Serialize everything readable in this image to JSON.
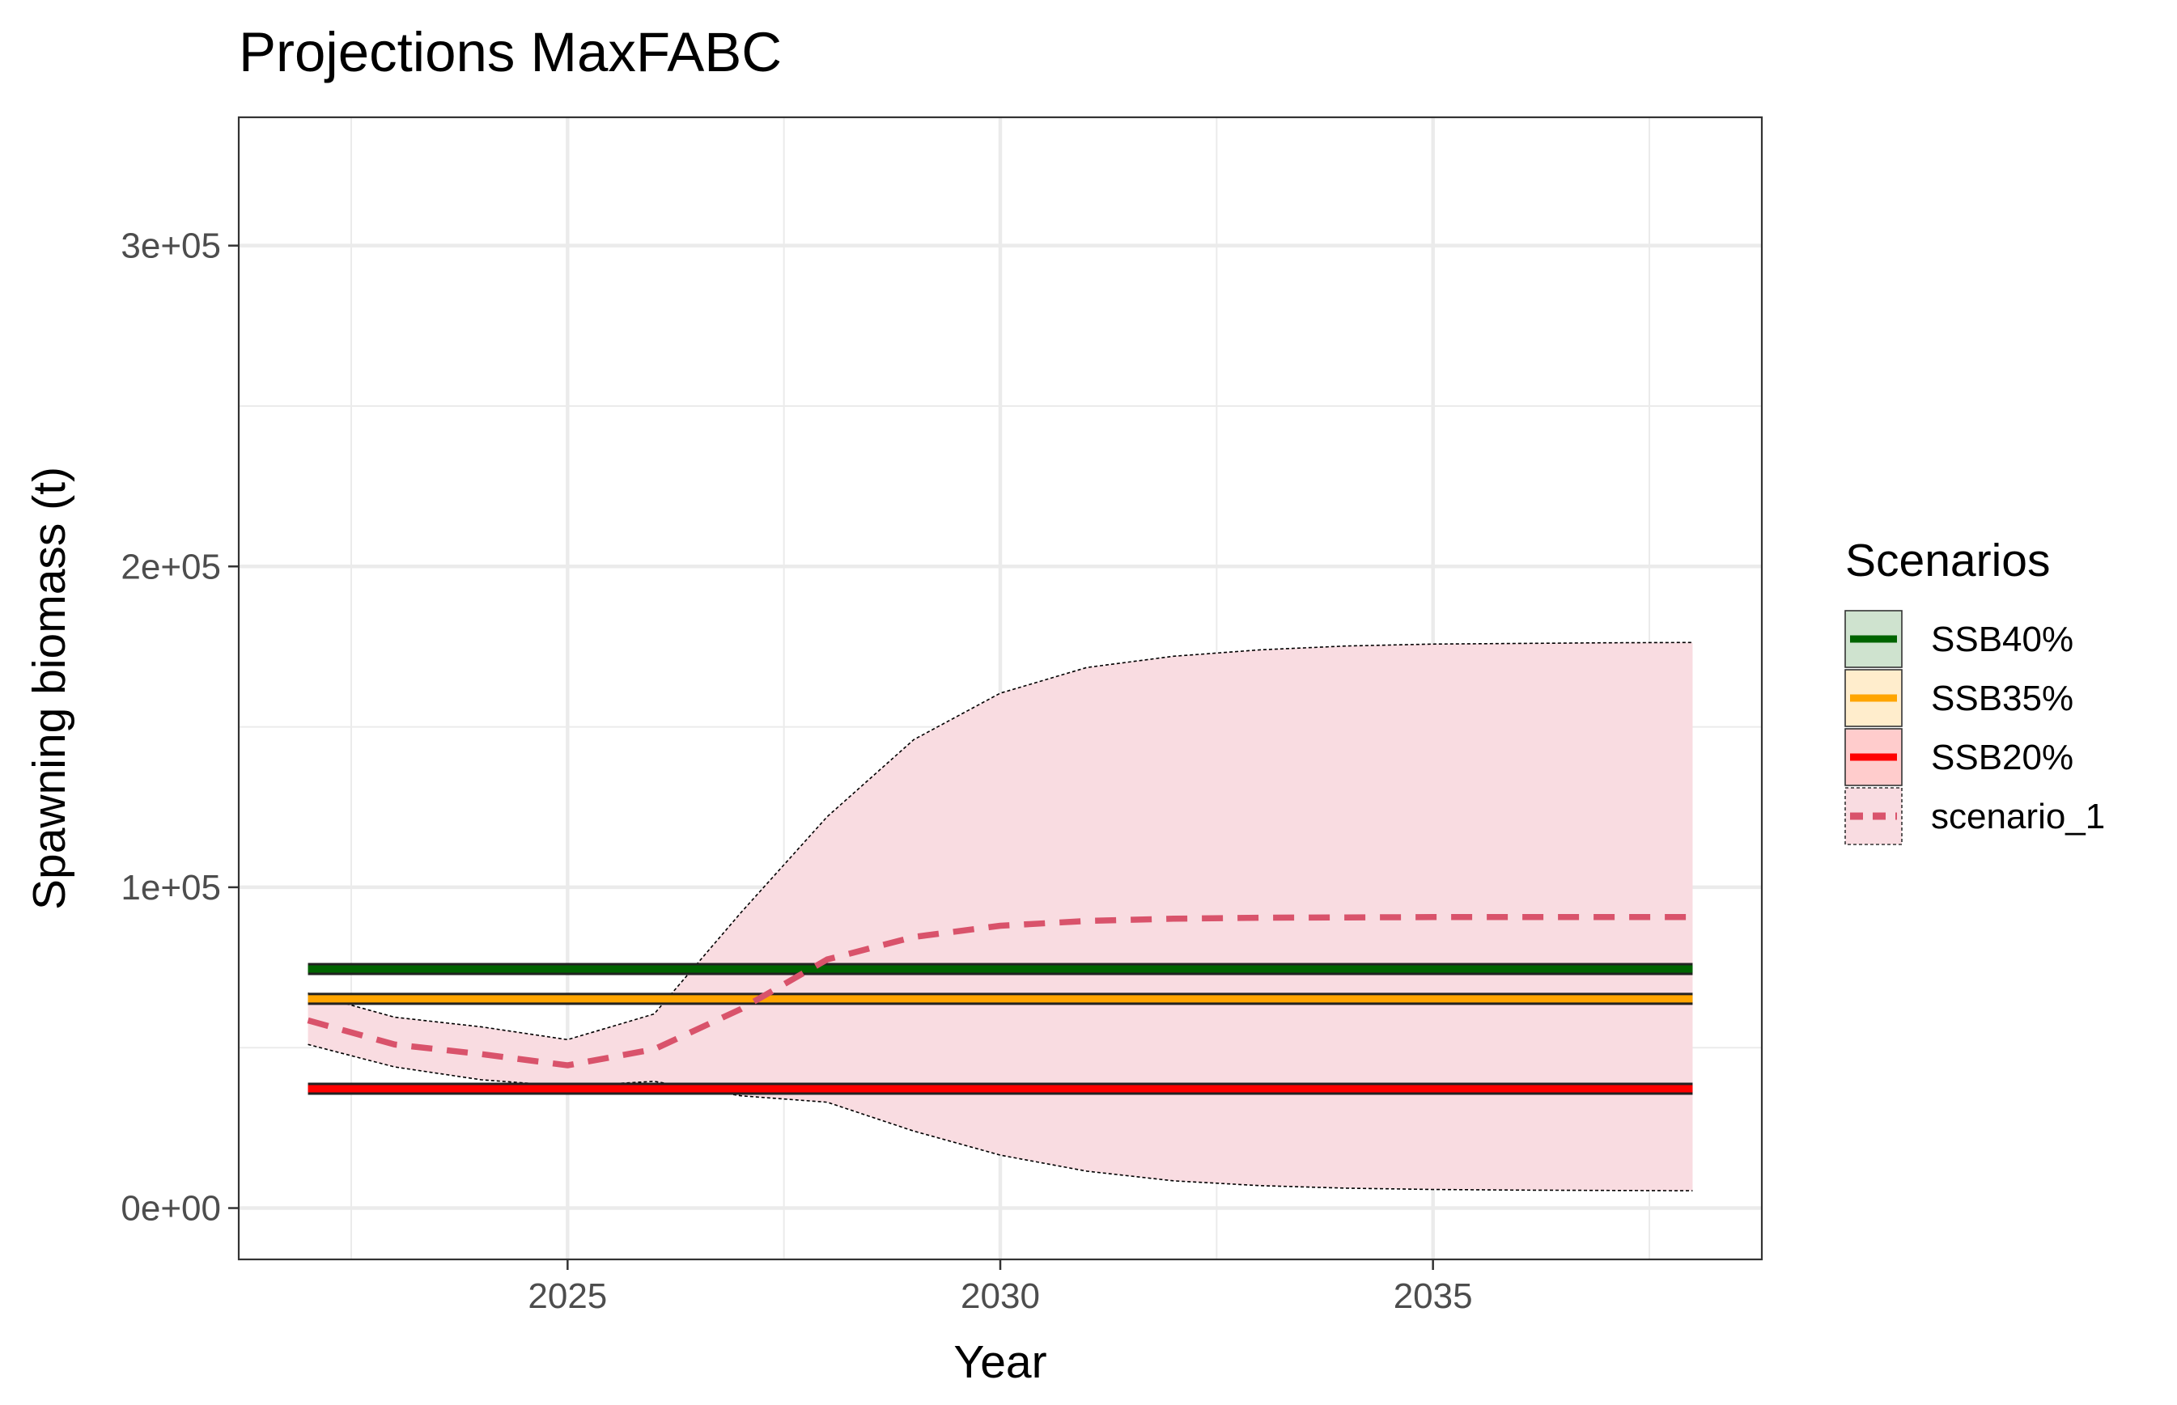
{
  "chart_data": {
    "type": "line",
    "title": "Projections MaxFABC",
    "xlabel": "Year",
    "ylabel": "Spawning biomass (t)",
    "xlim": [
      2021.2,
      2038.8
    ],
    "ylim": [
      -16000,
      340000
    ],
    "x_ticks": [
      2025,
      2030,
      2035
    ],
    "x_tick_labels": [
      "2025",
      "2030",
      "2035"
    ],
    "x_minor_ticks": [
      2022.5,
      2027.5,
      2032.5,
      2037.5
    ],
    "y_ticks": [
      0,
      100000,
      200000,
      300000
    ],
    "y_tick_labels": [
      "0e+00",
      "1e+05",
      "2e+05",
      "3e+05"
    ],
    "y_minor_ticks": [
      50000,
      150000,
      250000
    ],
    "grid": true,
    "legend": {
      "title": "Scenarios",
      "position": "right",
      "entries": [
        {
          "label": "SSB40%",
          "line_color": "#006400",
          "fill_color": "#cfe3cf",
          "dashed": false
        },
        {
          "label": "SSB35%",
          "line_color": "#ffa500",
          "fill_color": "#ffedcc",
          "dashed": false
        },
        {
          "label": "SSB20%",
          "line_color": "#ff0000",
          "fill_color": "#ffcccc",
          "dashed": false
        },
        {
          "label": "scenario_1",
          "line_color": "#d9536b",
          "fill_color": "#f9dce1",
          "dashed": true
        }
      ]
    },
    "reference_lines": [
      {
        "label": "SSB40%",
        "y": 74500,
        "x_start": 2022,
        "x_end": 2038,
        "color": "#006400"
      },
      {
        "label": "SSB35%",
        "y": 65200,
        "x_start": 2022,
        "x_end": 2038,
        "color": "#ffa500"
      },
      {
        "label": "SSB20%",
        "y": 37200,
        "x_start": 2022,
        "x_end": 2038,
        "color": "#ff0000"
      }
    ],
    "series": [
      {
        "name": "scenario_1",
        "x": [
          2022,
          2023,
          2024,
          2025,
          2026,
          2027,
          2028,
          2029,
          2030,
          2031,
          2032,
          2033,
          2034,
          2035,
          2036,
          2037,
          2038
        ],
        "y": [
          58500,
          51000,
          48000,
          44500,
          49500,
          62000,
          77500,
          84500,
          88000,
          89500,
          90200,
          90500,
          90600,
          90700,
          90700,
          90700,
          90700
        ],
        "lower": [
          51000,
          44000,
          40000,
          38000,
          39500,
          35000,
          33000,
          24000,
          16500,
          11500,
          8500,
          7000,
          6200,
          5800,
          5600,
          5500,
          5400
        ],
        "upper": [
          67000,
          59500,
          56500,
          52500,
          60500,
          92000,
          122000,
          146000,
          160500,
          168500,
          172000,
          174000,
          175200,
          175800,
          176000,
          176200,
          176300
        ],
        "color": "#d9536b",
        "ribbon_color": "#f9dce1"
      }
    ]
  }
}
